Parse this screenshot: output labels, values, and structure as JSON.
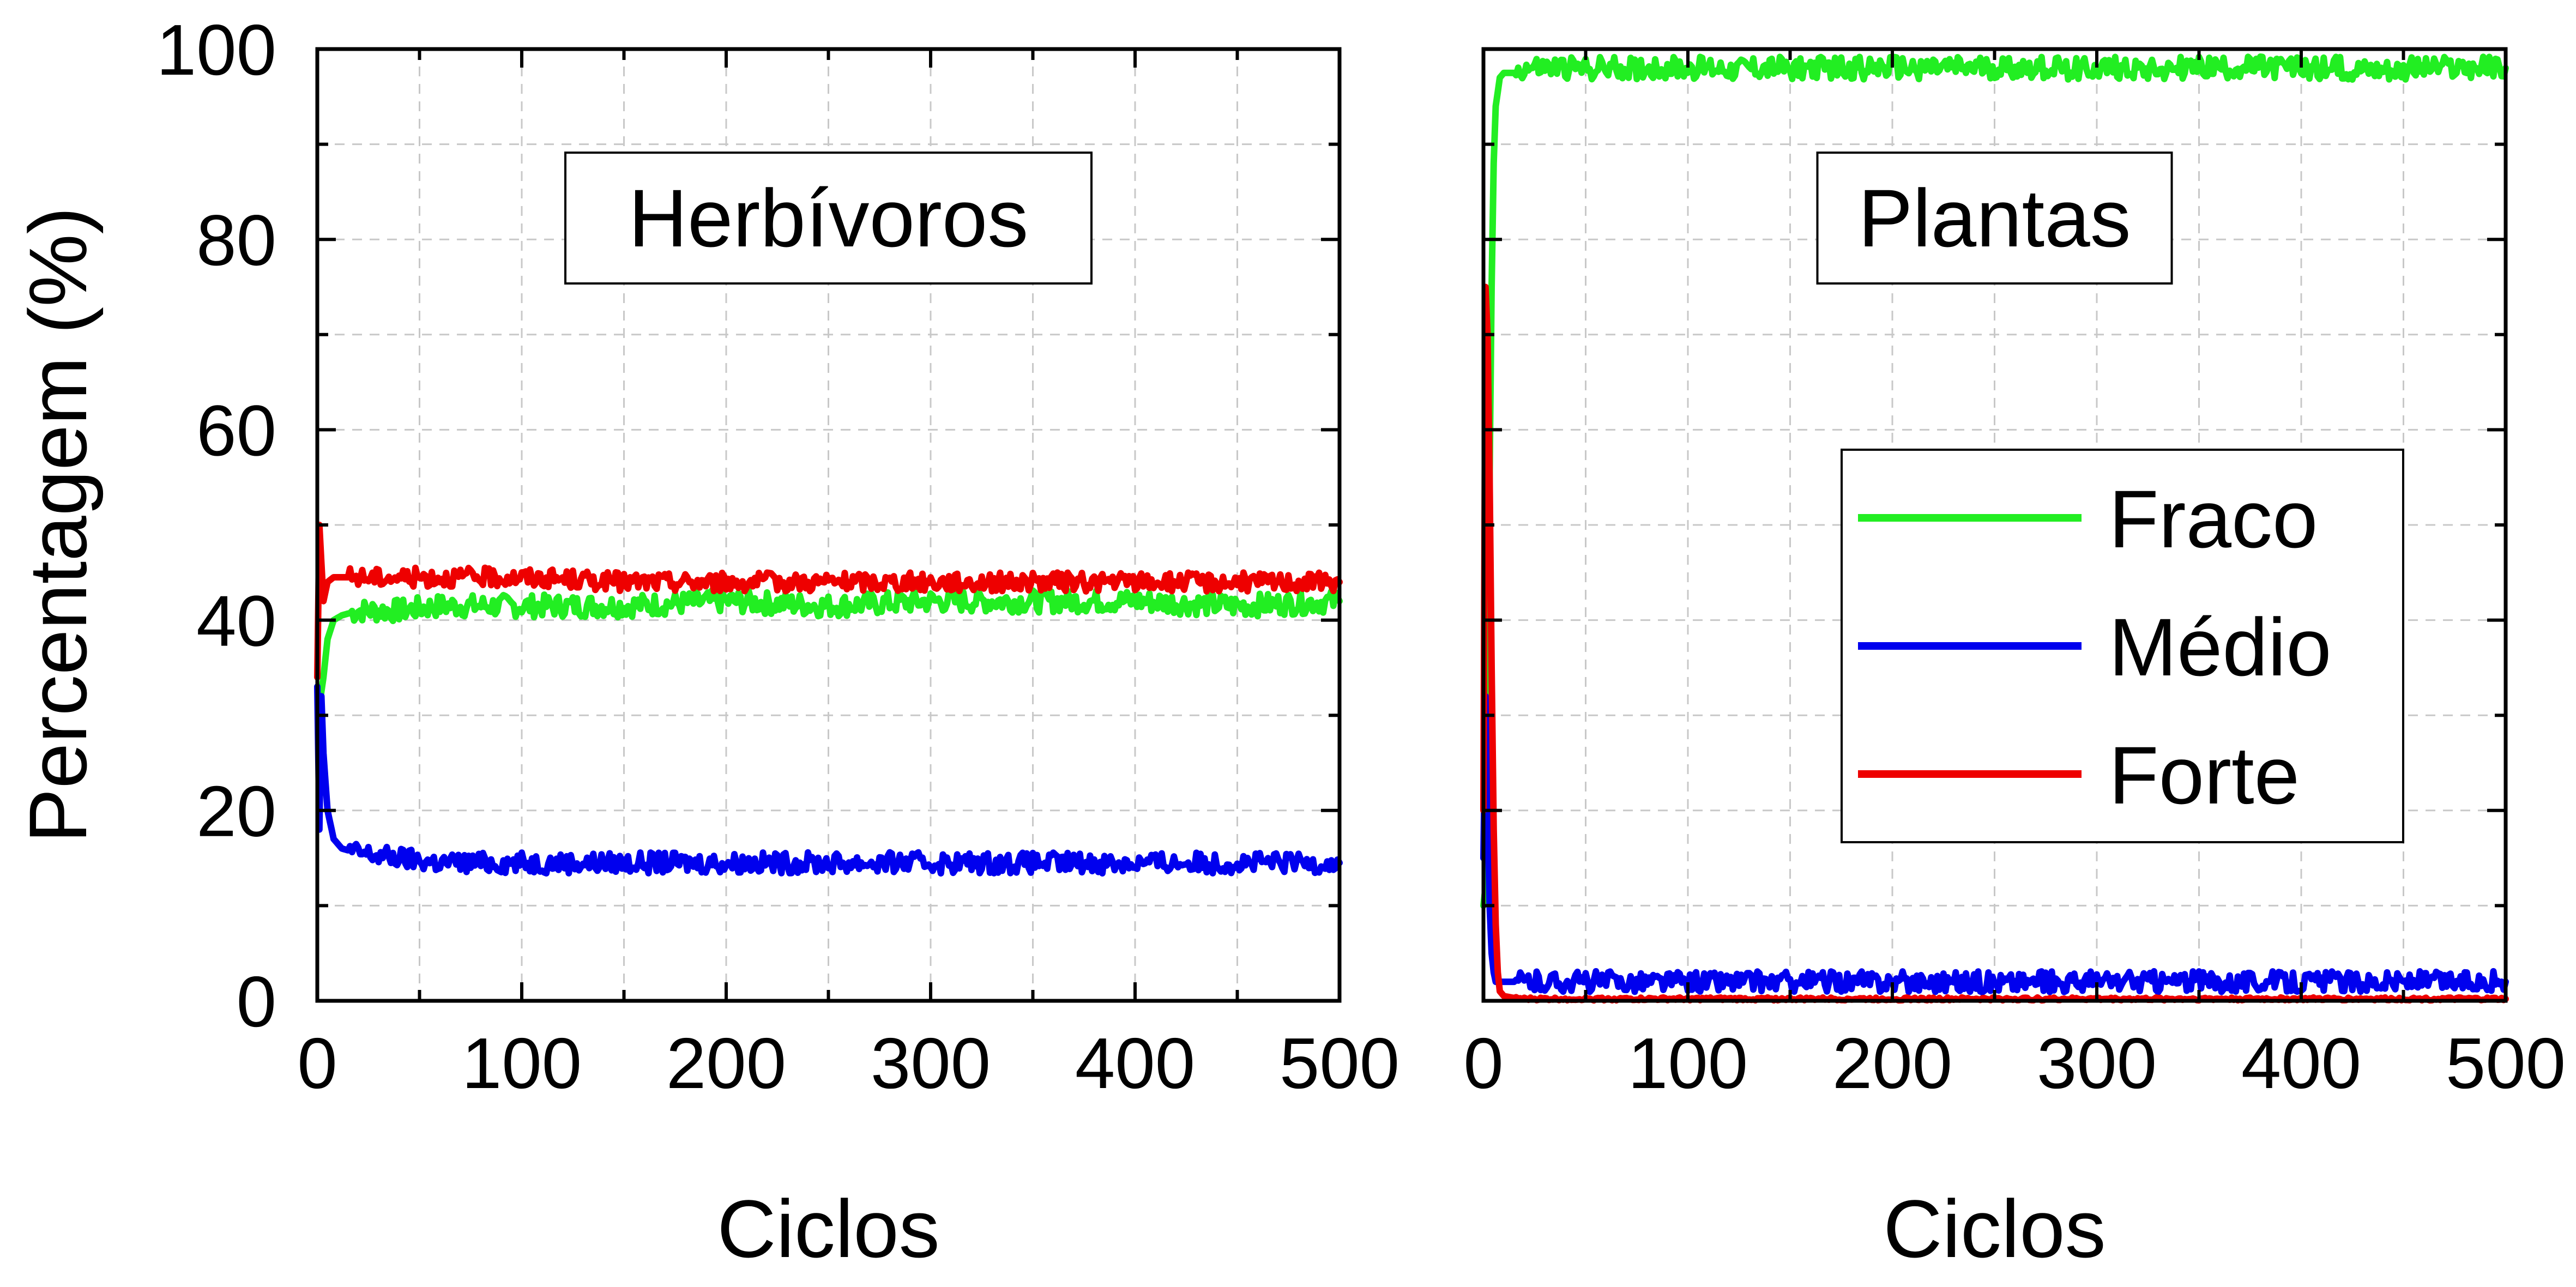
{
  "chart_data": [
    {
      "type": "line",
      "panel_title": "Herbívoros",
      "xlabel": "Ciclos",
      "ylabel": "Percentagem (%)",
      "xlim": [
        0,
        500
      ],
      "ylim": [
        0,
        100
      ],
      "xticks": [
        0,
        100,
        200,
        300,
        400,
        500
      ],
      "yticks": [
        0,
        20,
        40,
        60,
        80,
        100
      ],
      "grid": true,
      "series": [
        {
          "name": "Fraco",
          "color": "#22ee22",
          "x": [
            0,
            1,
            3,
            5,
            8,
            12,
            20,
            40,
            60,
            80,
            100,
            150,
            200,
            250,
            300,
            350,
            400,
            450,
            500
          ],
          "y": [
            33,
            31,
            34,
            38,
            40,
            40.5,
            41,
            41,
            41.5,
            41.5,
            41.5,
            41.5,
            42,
            41.5,
            42,
            42,
            42,
            41.5,
            42
          ]
        },
        {
          "name": "Médio",
          "color": "#0000ee",
          "x": [
            0,
            1,
            2,
            3,
            5,
            8,
            12,
            20,
            40,
            60,
            80,
            100,
            150,
            200,
            250,
            300,
            350,
            400,
            450,
            500
          ],
          "y": [
            33,
            18,
            32,
            26,
            20,
            17,
            16,
            15.5,
            15,
            14.5,
            14.5,
            14.5,
            14.5,
            14.5,
            14.5,
            14.5,
            14.5,
            14.5,
            14.5,
            14.5
          ]
        },
        {
          "name": "Forte",
          "color": "#ee0000",
          "x": [
            0,
            1,
            2,
            3,
            5,
            8,
            12,
            20,
            40,
            60,
            80,
            100,
            150,
            200,
            250,
            300,
            350,
            400,
            450,
            500
          ],
          "y": [
            34,
            50,
            46,
            42,
            44,
            44.5,
            44.5,
            44.5,
            44.5,
            44.5,
            44.5,
            44.5,
            44,
            44,
            44,
            44,
            44,
            44,
            44,
            44
          ]
        }
      ]
    },
    {
      "type": "line",
      "panel_title": "Plantas",
      "xlabel": "Ciclos",
      "xlim": [
        0,
        500
      ],
      "ylim": [
        0,
        100
      ],
      "xticks": [
        0,
        100,
        200,
        300,
        400,
        500
      ],
      "yticks": [
        0,
        20,
        40,
        60,
        80,
        100
      ],
      "grid": true,
      "legend_position": "center-right",
      "series": [
        {
          "name": "Fraco",
          "color": "#22ee22",
          "x": [
            0,
            1,
            2,
            3,
            4,
            5,
            6,
            8,
            10,
            15,
            20,
            40,
            60,
            80,
            100,
            150,
            200,
            250,
            300,
            350,
            400,
            450,
            500
          ],
          "y": [
            10,
            12,
            30,
            55,
            75,
            88,
            94,
            97,
            97.5,
            97.5,
            98,
            98,
            98,
            98,
            98,
            98,
            98,
            98,
            98,
            98,
            98,
            98,
            98
          ]
        },
        {
          "name": "Médio",
          "color": "#0000ee",
          "x": [
            0,
            1,
            2,
            3,
            4,
            5,
            6,
            8,
            10,
            15,
            20,
            40,
            60,
            80,
            100,
            150,
            200,
            250,
            300,
            350,
            400,
            450,
            500
          ],
          "y": [
            15,
            32,
            20,
            10,
            5,
            3,
            2,
            2,
            2,
            2,
            2,
            2,
            2,
            2,
            2,
            2,
            2,
            2,
            2,
            2,
            2,
            2,
            2
          ]
        },
        {
          "name": "Forte",
          "color": "#ee0000",
          "x": [
            0,
            1,
            2,
            3,
            4,
            5,
            6,
            7,
            8,
            10,
            15,
            20,
            40,
            60,
            80,
            100,
            150,
            200,
            250,
            300,
            350,
            400,
            450,
            500
          ],
          "y": [
            20,
            75,
            70,
            55,
            35,
            18,
            8,
            3,
            1,
            0.5,
            0.3,
            0.2,
            0.2,
            0.2,
            0.2,
            0.2,
            0.2,
            0.2,
            0.2,
            0.2,
            0.2,
            0.2,
            0.2,
            0.2
          ]
        }
      ]
    }
  ]
}
